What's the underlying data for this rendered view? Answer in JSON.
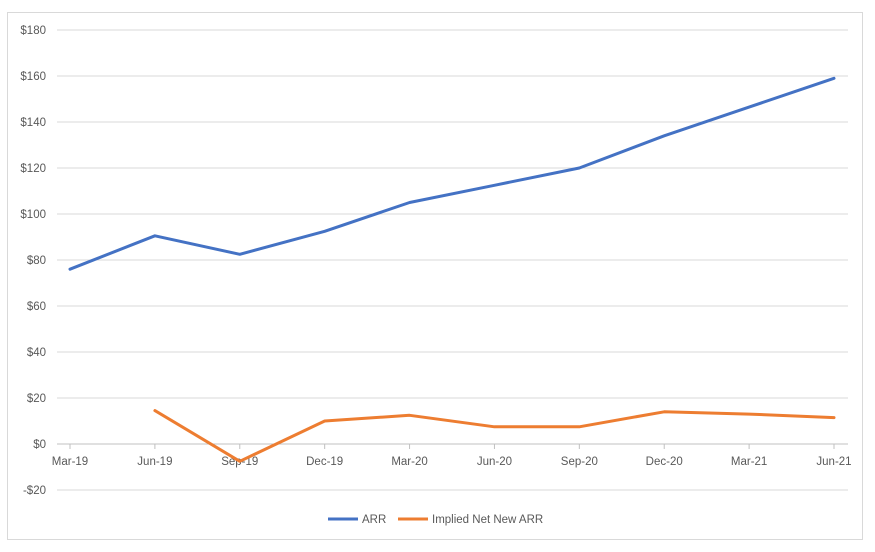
{
  "chart_data": {
    "type": "line",
    "title": "",
    "xlabel": "",
    "ylabel": "",
    "categories": [
      "Mar-19",
      "Jun-19",
      "Sep-19",
      "Dec-19",
      "Mar-20",
      "Jun-20",
      "Sep-20",
      "Dec-20",
      "Mar-21",
      "Jun-21"
    ],
    "ylim": [
      -20,
      180
    ],
    "y_ticks": [
      -20,
      0,
      20,
      40,
      60,
      80,
      100,
      120,
      140,
      160,
      180
    ],
    "y_tick_labels": [
      "-$20",
      "$0",
      "$20",
      "$40",
      "$60",
      "$80",
      "$100",
      "$120",
      "$140",
      "$160",
      "$180"
    ],
    "grid": "horizontal",
    "legend_position": "bottom-center",
    "series": [
      {
        "name": "ARR",
        "color": "#4472c4",
        "values": [
          76,
          90.5,
          82.5,
          92.5,
          105,
          112.5,
          120,
          134,
          146.5,
          159
        ]
      },
      {
        "name": "Implied Net New ARR",
        "color": "#ed7d31",
        "values": [
          null,
          14.5,
          -7.5,
          10,
          12.5,
          7.5,
          7.5,
          14,
          13,
          11.5
        ]
      }
    ]
  }
}
